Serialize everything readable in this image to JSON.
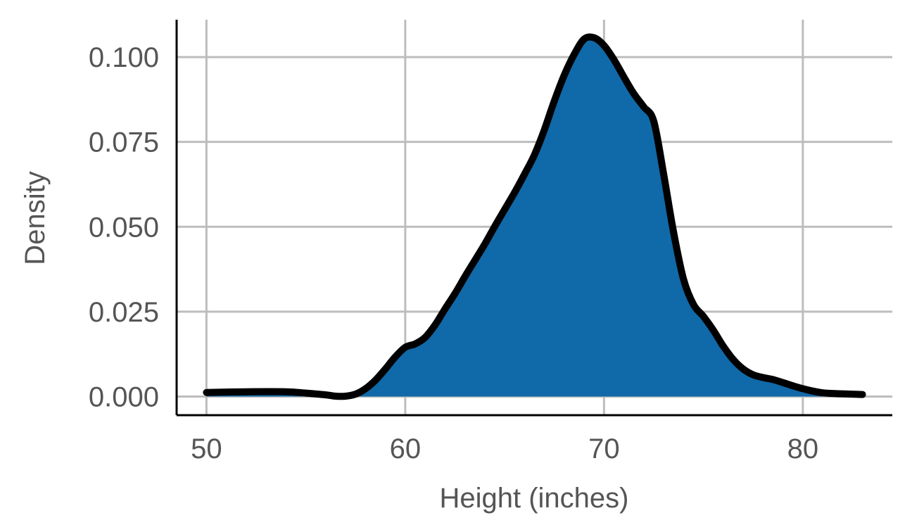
{
  "chart_data": {
    "type": "area",
    "title": "",
    "xlabel": "Height (inches)",
    "ylabel": "Density",
    "xlim": [
      48.5,
      84.5
    ],
    "ylim": [
      -0.0055,
      0.111
    ],
    "x_ticks": [
      50,
      60,
      70,
      80
    ],
    "y_ticks": [
      0.0,
      0.025,
      0.05,
      0.075,
      0.1
    ],
    "x_tick_labels": [
      "50",
      "60",
      "70",
      "80"
    ],
    "y_tick_labels": [
      "0.000",
      "0.025",
      "0.050",
      "0.075",
      "0.100"
    ],
    "grid": true,
    "legend": "none",
    "fill_color": "#1069A8",
    "line_color": "#000000",
    "series": [
      {
        "x": [
          50,
          52,
          54,
          55,
          56,
          56.5,
          57,
          57.5,
          58,
          58.5,
          59,
          59.5,
          60,
          60.5,
          61,
          61.5,
          62,
          62.5,
          63,
          63.5,
          64,
          64.5,
          65,
          65.5,
          66,
          66.5,
          67,
          67.5,
          68,
          68.5,
          69,
          69.5,
          70,
          70.5,
          71,
          71.5,
          72,
          72.5,
          73,
          73.5,
          74,
          74.5,
          75,
          75.5,
          76,
          76.5,
          77,
          77.5,
          78,
          78.5,
          79,
          80,
          81,
          82,
          83
        ],
        "y": [
          0.0012,
          0.0014,
          0.0014,
          0.001,
          0.0005,
          0.0001,
          0.0001,
          0.0007,
          0.0023,
          0.0048,
          0.0081,
          0.0117,
          0.0145,
          0.0155,
          0.0174,
          0.0211,
          0.0258,
          0.0303,
          0.0353,
          0.0401,
          0.0449,
          0.0501,
          0.0551,
          0.0601,
          0.0655,
          0.0712,
          0.0786,
          0.0871,
          0.0947,
          0.1008,
          0.1053,
          0.1057,
          0.1034,
          0.0992,
          0.0941,
          0.0892,
          0.0853,
          0.0811,
          0.0655,
          0.0483,
          0.0345,
          0.0271,
          0.0236,
          0.0195,
          0.0148,
          0.0109,
          0.0081,
          0.0064,
          0.0056,
          0.005,
          0.0041,
          0.0023,
          0.0011,
          0.0008,
          0.0006
        ]
      }
    ]
  }
}
